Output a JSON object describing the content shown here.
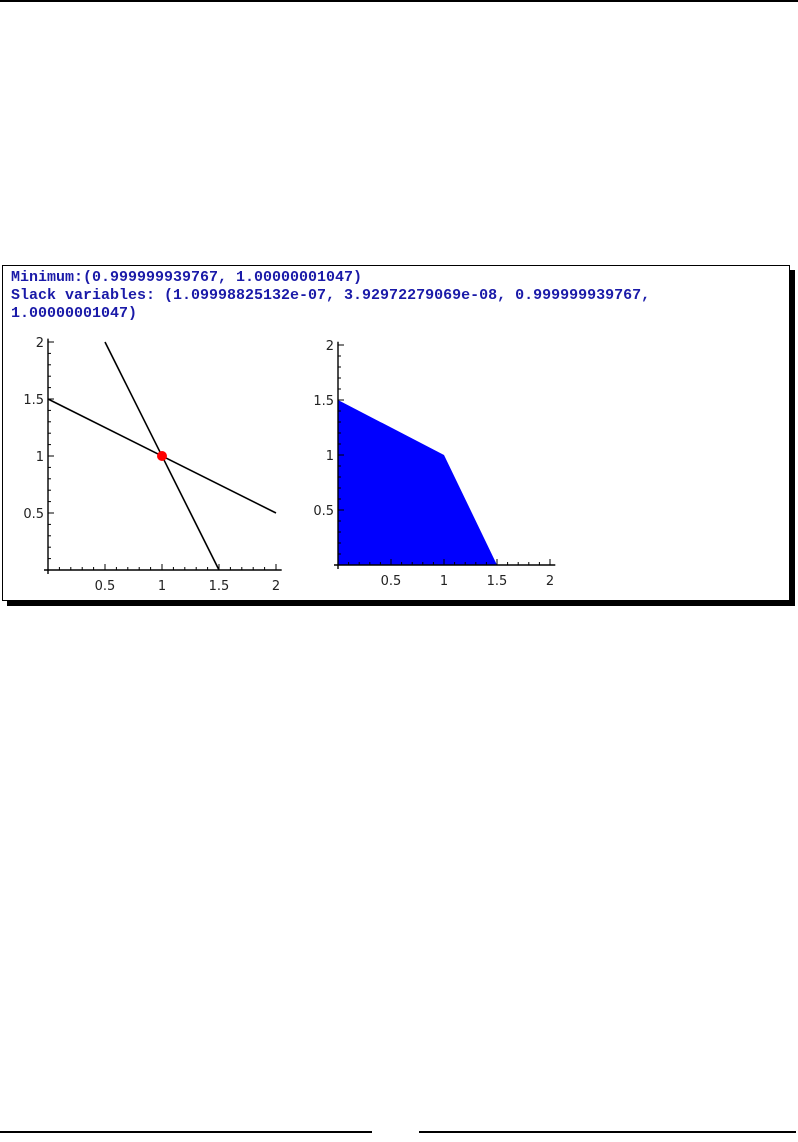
{
  "output": {
    "minimum_line": "Minimum:(0.999999939767, 1.00000001047)",
    "slack_line1": "Slack variables: (1.09998825132e-07, 3.92972279069e-08, 0.999999939767,",
    "slack_line2": "1.00000001047)"
  },
  "chart_data": [
    {
      "type": "line",
      "xlim": [
        0,
        2
      ],
      "ylim": [
        0,
        2
      ],
      "xticks": [
        "0.5",
        "1",
        "1.5",
        "2"
      ],
      "yticks": [
        "0.5",
        "1",
        "1.5",
        "2"
      ],
      "grid": false,
      "series": [
        {
          "x": [
            0.5,
            1.5
          ],
          "y": [
            2,
            0
          ],
          "color": "#000000"
        },
        {
          "x": [
            0,
            2
          ],
          "y": [
            1.5,
            0.5
          ],
          "color": "#000000"
        }
      ],
      "points": [
        {
          "x": 1,
          "y": 1,
          "color": "#ff0000"
        }
      ]
    },
    {
      "type": "area",
      "xlim": [
        0,
        2
      ],
      "ylim": [
        0,
        2
      ],
      "xticks": [
        "0.5",
        "1",
        "1.5",
        "2"
      ],
      "yticks": [
        "0.5",
        "1",
        "1.5",
        "2"
      ],
      "grid": false,
      "polygon": {
        "x": [
          0,
          0,
          1,
          1.5
        ],
        "y": [
          0,
          1.5,
          1,
          0
        ],
        "color": "#0000ff"
      }
    }
  ]
}
